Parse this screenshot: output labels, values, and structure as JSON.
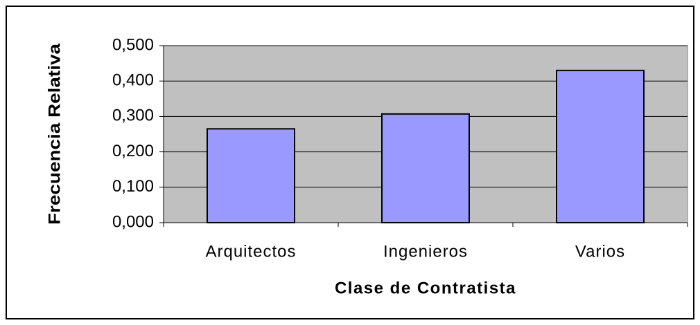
{
  "chart_data": {
    "type": "bar",
    "xlabel": "Clase de Contratista",
    "ylabel": "Frecuencia Relativa",
    "categories": [
      "Arquitectos",
      "Ingenieros",
      "Varios"
    ],
    "values": [
      0.265,
      0.307,
      0.43
    ],
    "color": "#9999ff",
    "ylim": [
      0,
      0.5
    ],
    "yticks": [
      {
        "value": 0,
        "label": "0,000"
      },
      {
        "value": 0.1,
        "label": "0,100"
      },
      {
        "value": 0.2,
        "label": "0,200"
      },
      {
        "value": 0.3,
        "label": "0,300"
      },
      {
        "value": 0.4,
        "label": "0,400"
      },
      {
        "value": 0.5,
        "label": "0,500"
      }
    ],
    "grid": true
  }
}
